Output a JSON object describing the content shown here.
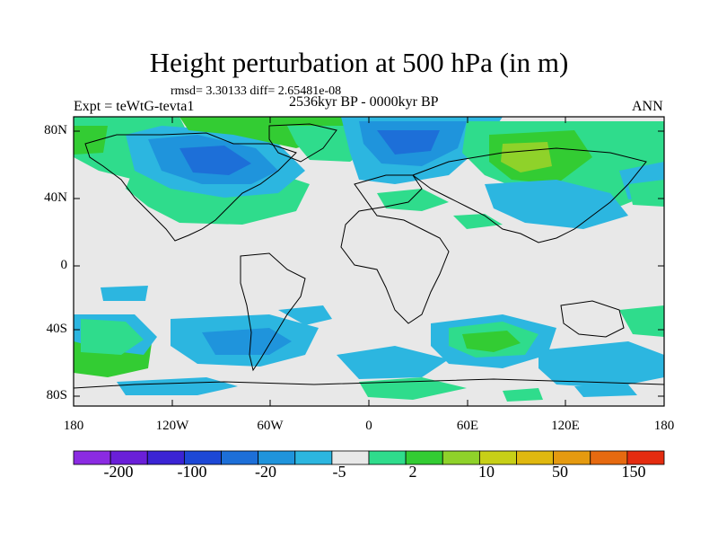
{
  "title": "Height perturbation at 500 hPa (in m)",
  "stats": "rmsd= 3.30133 diff= 2.65481e-08",
  "experiment": "Expt = teWtG-tevta1",
  "period": "2536kyr BP - 0000kyr BP",
  "season": "ANN",
  "lat_labels": [
    "80N",
    "40N",
    "0",
    "40S",
    "80S"
  ],
  "lon_labels": [
    "180",
    "120W",
    "60W",
    "0",
    "60E",
    "120E",
    "180"
  ],
  "colorbar": {
    "colors": [
      "#8b2be2",
      "#6a1fd8",
      "#3b24d4",
      "#1d48d6",
      "#1d6fd8",
      "#1f94dc",
      "#2cb6e0",
      "#e8e8e8",
      "#2fdc8c",
      "#33cc33",
      "#8fd22a",
      "#c7cf17",
      "#e0b80f",
      "#e59a10",
      "#e66a10",
      "#e42c10"
    ],
    "labels": [
      "-200",
      "-100",
      "-20",
      "-5",
      "2",
      "10",
      "50",
      "150"
    ]
  }
}
